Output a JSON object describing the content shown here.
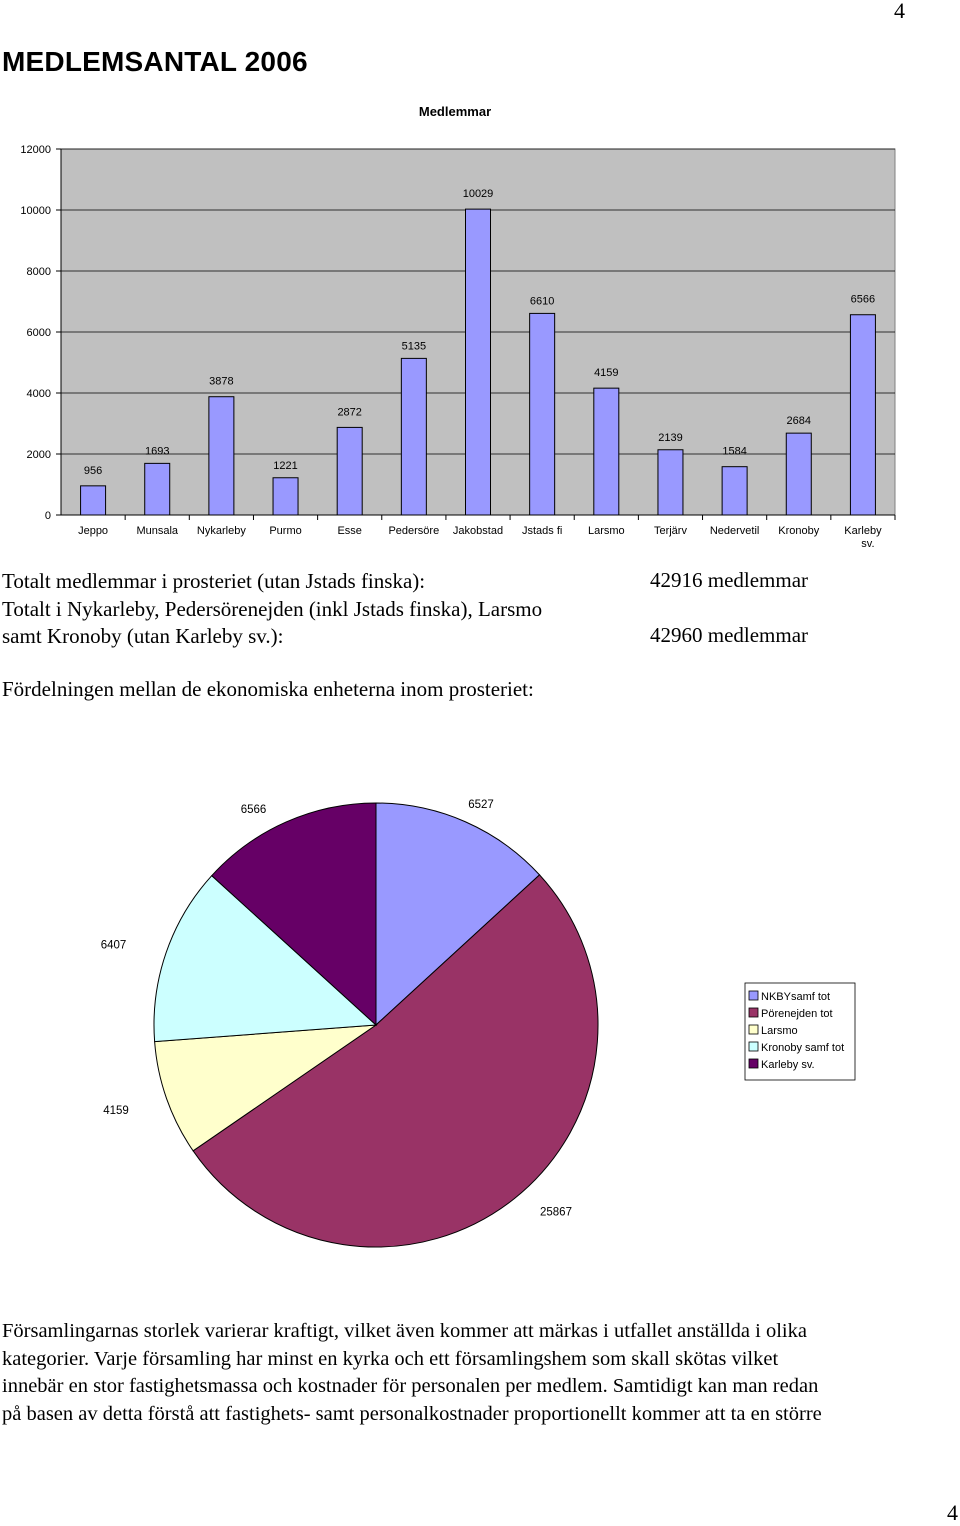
{
  "page": {
    "number_top": "4",
    "number_bottom": "4"
  },
  "document": {
    "title": "MEDLEMSANTAL 2006",
    "summary_line1": "Totalt medlemmar i prosteriet (utan Jstads finska):",
    "summary_line2": "Totalt i Nykarleby, Pedersörenejden (inkl Jstads finska), Larsmo",
    "summary_line3": "samt Kronoby (utan Karleby sv.):",
    "summary_value1": "42916 medlemmar",
    "summary_value2": "42960 medlemmar",
    "section_heading": "Fördelningen mellan de ekonomiska enheterna inom prosteriet:",
    "paragraph_lines": [
      "Församlingarnas storlek varierar kraftigt, vilket även kommer att märkas i utfallet anställda i olika",
      "kategorier. Varje församling har minst en kyrka och ett församlingshem som skall skötas vilket",
      "innebär en stor fastighetsmassa och kostnader för personalen per medlem. Samtidigt kan man redan",
      "på basen av detta förstå att fastighets- samt personalkostnader proportionellt kommer att ta en större"
    ]
  },
  "chart_data": [
    {
      "type": "bar",
      "title": "Medlemmar",
      "categories": [
        "Jeppo",
        "Munsala",
        "Nykarleby",
        "Purmo",
        "Esse",
        "Pedersöre",
        "Jakobstad",
        "Jstads fi",
        "Larsmo",
        "Terjärv",
        "Nedervetil",
        "Kronoby",
        "Karleby sv."
      ],
      "values": [
        956,
        1693,
        3878,
        1221,
        2872,
        5135,
        10029,
        6610,
        4159,
        2139,
        1584,
        2684,
        6566
      ],
      "value_labels": [
        "956",
        "1693",
        "3878",
        "1221",
        "2872",
        "5135",
        "10029",
        "6610",
        "4159",
        "2139",
        "1584",
        "2684",
        "6566"
      ],
      "y_ticks": [
        "0",
        "2000",
        "4000",
        "6000",
        "8000",
        "10000",
        "12000"
      ],
      "ylim": [
        0,
        12000
      ],
      "grid": true,
      "colors": {
        "bar": "#9999ff",
        "plot_bg": "#c0c0c0",
        "grid": "#000000"
      }
    },
    {
      "type": "pie",
      "slices": [
        {
          "label": "NKBYsamf tot",
          "value": 6527,
          "value_label": "6527",
          "color": "#9999ff"
        },
        {
          "label": "Pörenejden tot",
          "value": 25867,
          "value_label": "25867",
          "color": "#993366"
        },
        {
          "label": "Larsmo",
          "value": 4159,
          "value_label": "4159",
          "color": "#ffffcc"
        },
        {
          "label": "Kronoby samf tot",
          "value": 6407,
          "value_label": "6407",
          "color": "#ccffff"
        },
        {
          "label": "Karleby sv.",
          "value": 6566,
          "value_label": "6566",
          "color": "#660066"
        }
      ],
      "legend": "right"
    }
  ]
}
